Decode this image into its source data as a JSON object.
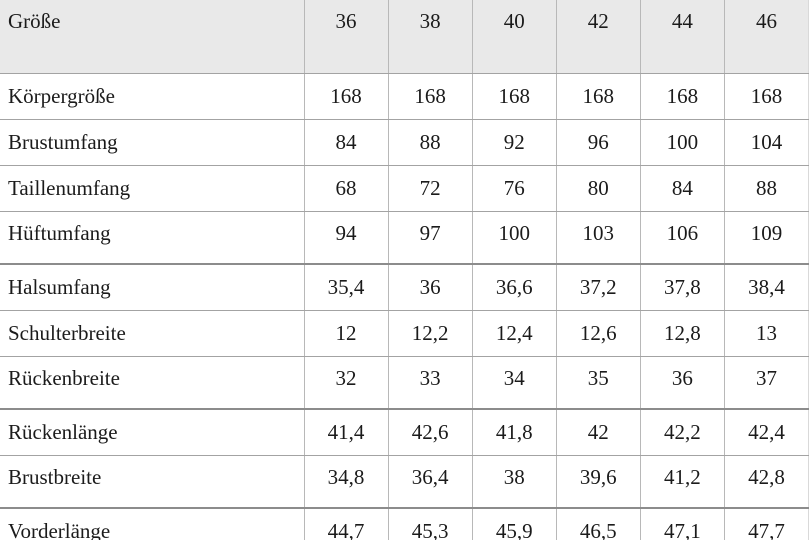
{
  "table": {
    "header": {
      "label": "Größe",
      "sizes": [
        "36",
        "38",
        "40",
        "42",
        "44",
        "46"
      ]
    },
    "rows": [
      {
        "label": "Körpergröße",
        "values": [
          "168",
          "168",
          "168",
          "168",
          "168",
          "168"
        ],
        "group_end": false
      },
      {
        "label": "Brustumfang",
        "values": [
          "84",
          "88",
          "92",
          "96",
          "100",
          "104"
        ],
        "group_end": false
      },
      {
        "label": "Taillenumfang",
        "values": [
          "68",
          "72",
          "76",
          "80",
          "84",
          "88"
        ],
        "group_end": false
      },
      {
        "label": "Hüftumfang",
        "values": [
          "94",
          "97",
          "100",
          "103",
          "106",
          "109"
        ],
        "group_end": true
      },
      {
        "label": "Halsumfang",
        "values": [
          "35,4",
          "36",
          "36,6",
          "37,2",
          "37,8",
          "38,4"
        ],
        "group_end": false
      },
      {
        "label": "Schulterbreite",
        "values": [
          "12",
          "12,2",
          "12,4",
          "12,6",
          "12,8",
          "13"
        ],
        "group_end": false
      },
      {
        "label": "Rückenbreite",
        "values": [
          "32",
          "33",
          "34",
          "35",
          "36",
          "37"
        ],
        "group_end": true
      },
      {
        "label": "Rückenlänge",
        "values": [
          "41,4",
          "42,6",
          "41,8",
          "42",
          "42,2",
          "42,4"
        ],
        "group_end": false
      },
      {
        "label": "Brustbreite",
        "values": [
          "34,8",
          "36,4",
          "38",
          "39,6",
          "41,2",
          "42,8"
        ],
        "group_end": true
      },
      {
        "label": "Vorderlänge",
        "values": [
          "44,7",
          "45,3",
          "45,9",
          "46,5",
          "47,1",
          "47,7"
        ],
        "group_end": false
      }
    ],
    "colors": {
      "header_bg": "#e9e9e9",
      "row_line": "#a3a3a3",
      "col_line": "#b8b8b8",
      "group_line": "#8c8c8c",
      "bottom_line": "#565656",
      "edge_line": "#d9d9d9"
    }
  }
}
